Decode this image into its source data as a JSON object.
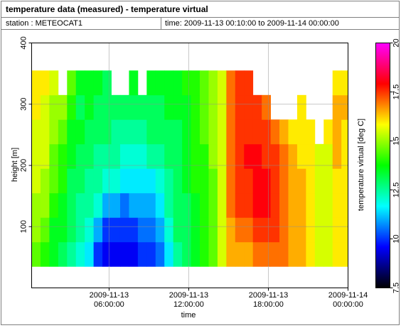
{
  "chart_data": {
    "type": "heatmap",
    "title": "temperature data (measured) - temperature virtual",
    "station_label": "station : METEOCAT1",
    "time_label": "time: 2009-11-13 00:10:00 to 2009-11-14 00:00:00",
    "x_label": "time",
    "y_label": "height [m]",
    "colorbar_label": "temperature virtual [deg C]",
    "xlim": [
      "2009-11-13 00:10:00",
      "2009-11-14 00:00:00"
    ],
    "xticks": [
      "2009-11-13 06:00:00",
      "2009-11-13 12:00:00",
      "2009-11-13 18:00:00",
      "2009-11-14 00:00:00"
    ],
    "ylim": [
      0,
      400
    ],
    "yticks": [
      100,
      200,
      300,
      400
    ],
    "clim": [
      7.5,
      20
    ],
    "cticks": [
      7.5,
      10,
      12.5,
      15,
      17.5,
      20
    ],
    "colormap": [
      "#000000",
      "#0000ff",
      "#00ffff",
      "#00ff00",
      "#ffff00",
      "#ff0000",
      "#ff00ff"
    ],
    "grid": true,
    "y": [
      55,
      95,
      135,
      175,
      215,
      255,
      295,
      335
    ],
    "x": [
      "2009-11-13 00:10:00",
      "2009-11-13 00:50:00",
      "2009-11-13 01:30:00",
      "2009-11-13 02:10:00",
      "2009-11-13 02:50:00",
      "2009-11-13 03:30:00",
      "2009-11-13 04:10:00",
      "2009-11-13 04:50:00",
      "2009-11-13 05:30:00",
      "2009-11-13 06:10:00",
      "2009-11-13 06:50:00",
      "2009-11-13 07:30:00",
      "2009-11-13 08:10:00",
      "2009-11-13 08:50:00",
      "2009-11-13 09:30:00",
      "2009-11-13 10:10:00",
      "2009-11-13 10:50:00",
      "2009-11-13 11:30:00",
      "2009-11-13 12:10:00",
      "2009-11-13 12:50:00",
      "2009-11-13 13:30:00",
      "2009-11-13 14:10:00",
      "2009-11-13 14:50:00",
      "2009-11-13 15:30:00",
      "2009-11-13 16:10:00",
      "2009-11-13 16:50:00",
      "2009-11-13 17:30:00",
      "2009-11-13 18:10:00",
      "2009-11-13 18:50:00",
      "2009-11-13 19:30:00",
      "2009-11-13 20:10:00",
      "2009-11-13 20:50:00",
      "2009-11-13 21:30:00",
      "2009-11-13 22:10:00",
      "2009-11-13 22:50:00",
      "2009-11-13 23:30:00"
    ],
    "values": [
      [
        14.5,
        15,
        15,
        15.5,
        15.5,
        15.5,
        16,
        16
      ],
      [
        14,
        14.5,
        15,
        15,
        15.5,
        15.5,
        15.5,
        16
      ],
      [
        13.5,
        13.5,
        14,
        14.5,
        14.5,
        15,
        15,
        15.5
      ],
      [
        13,
        13.5,
        13.5,
        14,
        14,
        14.5,
        15,
        null
      ],
      [
        12.5,
        13,
        13,
        13,
        13.5,
        13.5,
        14,
        14.5
      ],
      [
        12,
        12.5,
        12.5,
        13,
        13,
        13.5,
        13,
        13.5
      ],
      [
        11.5,
        12,
        12.5,
        12.5,
        13,
        13,
        13.5,
        13.5
      ],
      [
        10,
        11,
        12,
        12.5,
        12.5,
        13,
        13,
        13.5
      ],
      [
        9.5,
        10,
        11,
        12,
        12.5,
        13,
        13,
        13
      ],
      [
        9.5,
        10,
        11,
        12,
        12.5,
        12.5,
        13,
        null
      ],
      [
        9.5,
        10,
        10.5,
        11.5,
        12,
        12.5,
        13,
        null
      ],
      [
        9.5,
        10,
        11,
        11.5,
        12,
        12.5,
        13,
        13.5
      ],
      [
        10,
        10.5,
        11,
        11.5,
        12,
        12.5,
        13,
        null
      ],
      [
        10,
        10.5,
        11,
        11.5,
        12.5,
        13,
        13,
        13.5
      ],
      [
        10.5,
        11,
        11.5,
        12,
        12.5,
        13,
        13,
        13.5
      ],
      [
        11.5,
        12,
        12.5,
        12.5,
        13,
        13,
        13.5,
        13.5
      ],
      [
        12.5,
        13,
        13,
        13,
        13,
        13,
        13.5,
        13.5
      ],
      [
        13,
        13,
        13,
        13.5,
        13.5,
        13.5,
        13.5,
        14
      ],
      [
        13.5,
        13.5,
        13.5,
        14,
        14,
        14,
        14,
        14
      ],
      [
        14,
        14,
        14,
        14,
        14,
        14.5,
        14.5,
        14.5
      ],
      [
        14.5,
        14.5,
        14.5,
        14.5,
        15,
        15,
        15,
        15
      ],
      [
        15.5,
        15.5,
        15.5,
        15.5,
        15.5,
        15.5,
        15.5,
        15.5
      ],
      [
        16.5,
        16.5,
        17,
        17,
        17,
        17,
        17,
        17
      ],
      [
        16.5,
        17,
        17.5,
        17.5,
        17.5,
        17.5,
        17.5,
        17.5
      ],
      [
        16.5,
        17,
        17.5,
        17.5,
        18,
        17.5,
        17.5,
        17.5
      ],
      [
        17,
        17.5,
        18,
        18,
        18,
        17.5,
        17.5,
        null
      ],
      [
        17,
        17.5,
        18,
        18,
        17.5,
        17.5,
        17,
        null
      ],
      [
        17,
        17.5,
        17.5,
        17.5,
        17.5,
        17,
        null,
        null
      ],
      [
        17,
        17,
        17,
        17,
        17,
        16.5,
        null,
        null
      ],
      [
        16.5,
        16.5,
        16.5,
        16.5,
        16.5,
        16,
        null,
        null
      ],
      [
        16.5,
        16.5,
        16.5,
        16.5,
        16,
        16,
        16,
        null
      ],
      [
        16,
        16,
        16,
        16,
        16,
        16,
        null,
        null
      ],
      [
        15.5,
        15.5,
        15.5,
        15.5,
        15.5,
        null,
        null,
        null
      ],
      [
        15.5,
        15.5,
        15.5,
        15.5,
        15.5,
        16,
        null,
        null
      ],
      [
        16,
        16,
        16,
        16,
        16.5,
        16.5,
        16.5,
        16
      ],
      [
        16,
        16,
        16,
        16,
        16,
        16,
        16.5,
        16
      ]
    ]
  }
}
